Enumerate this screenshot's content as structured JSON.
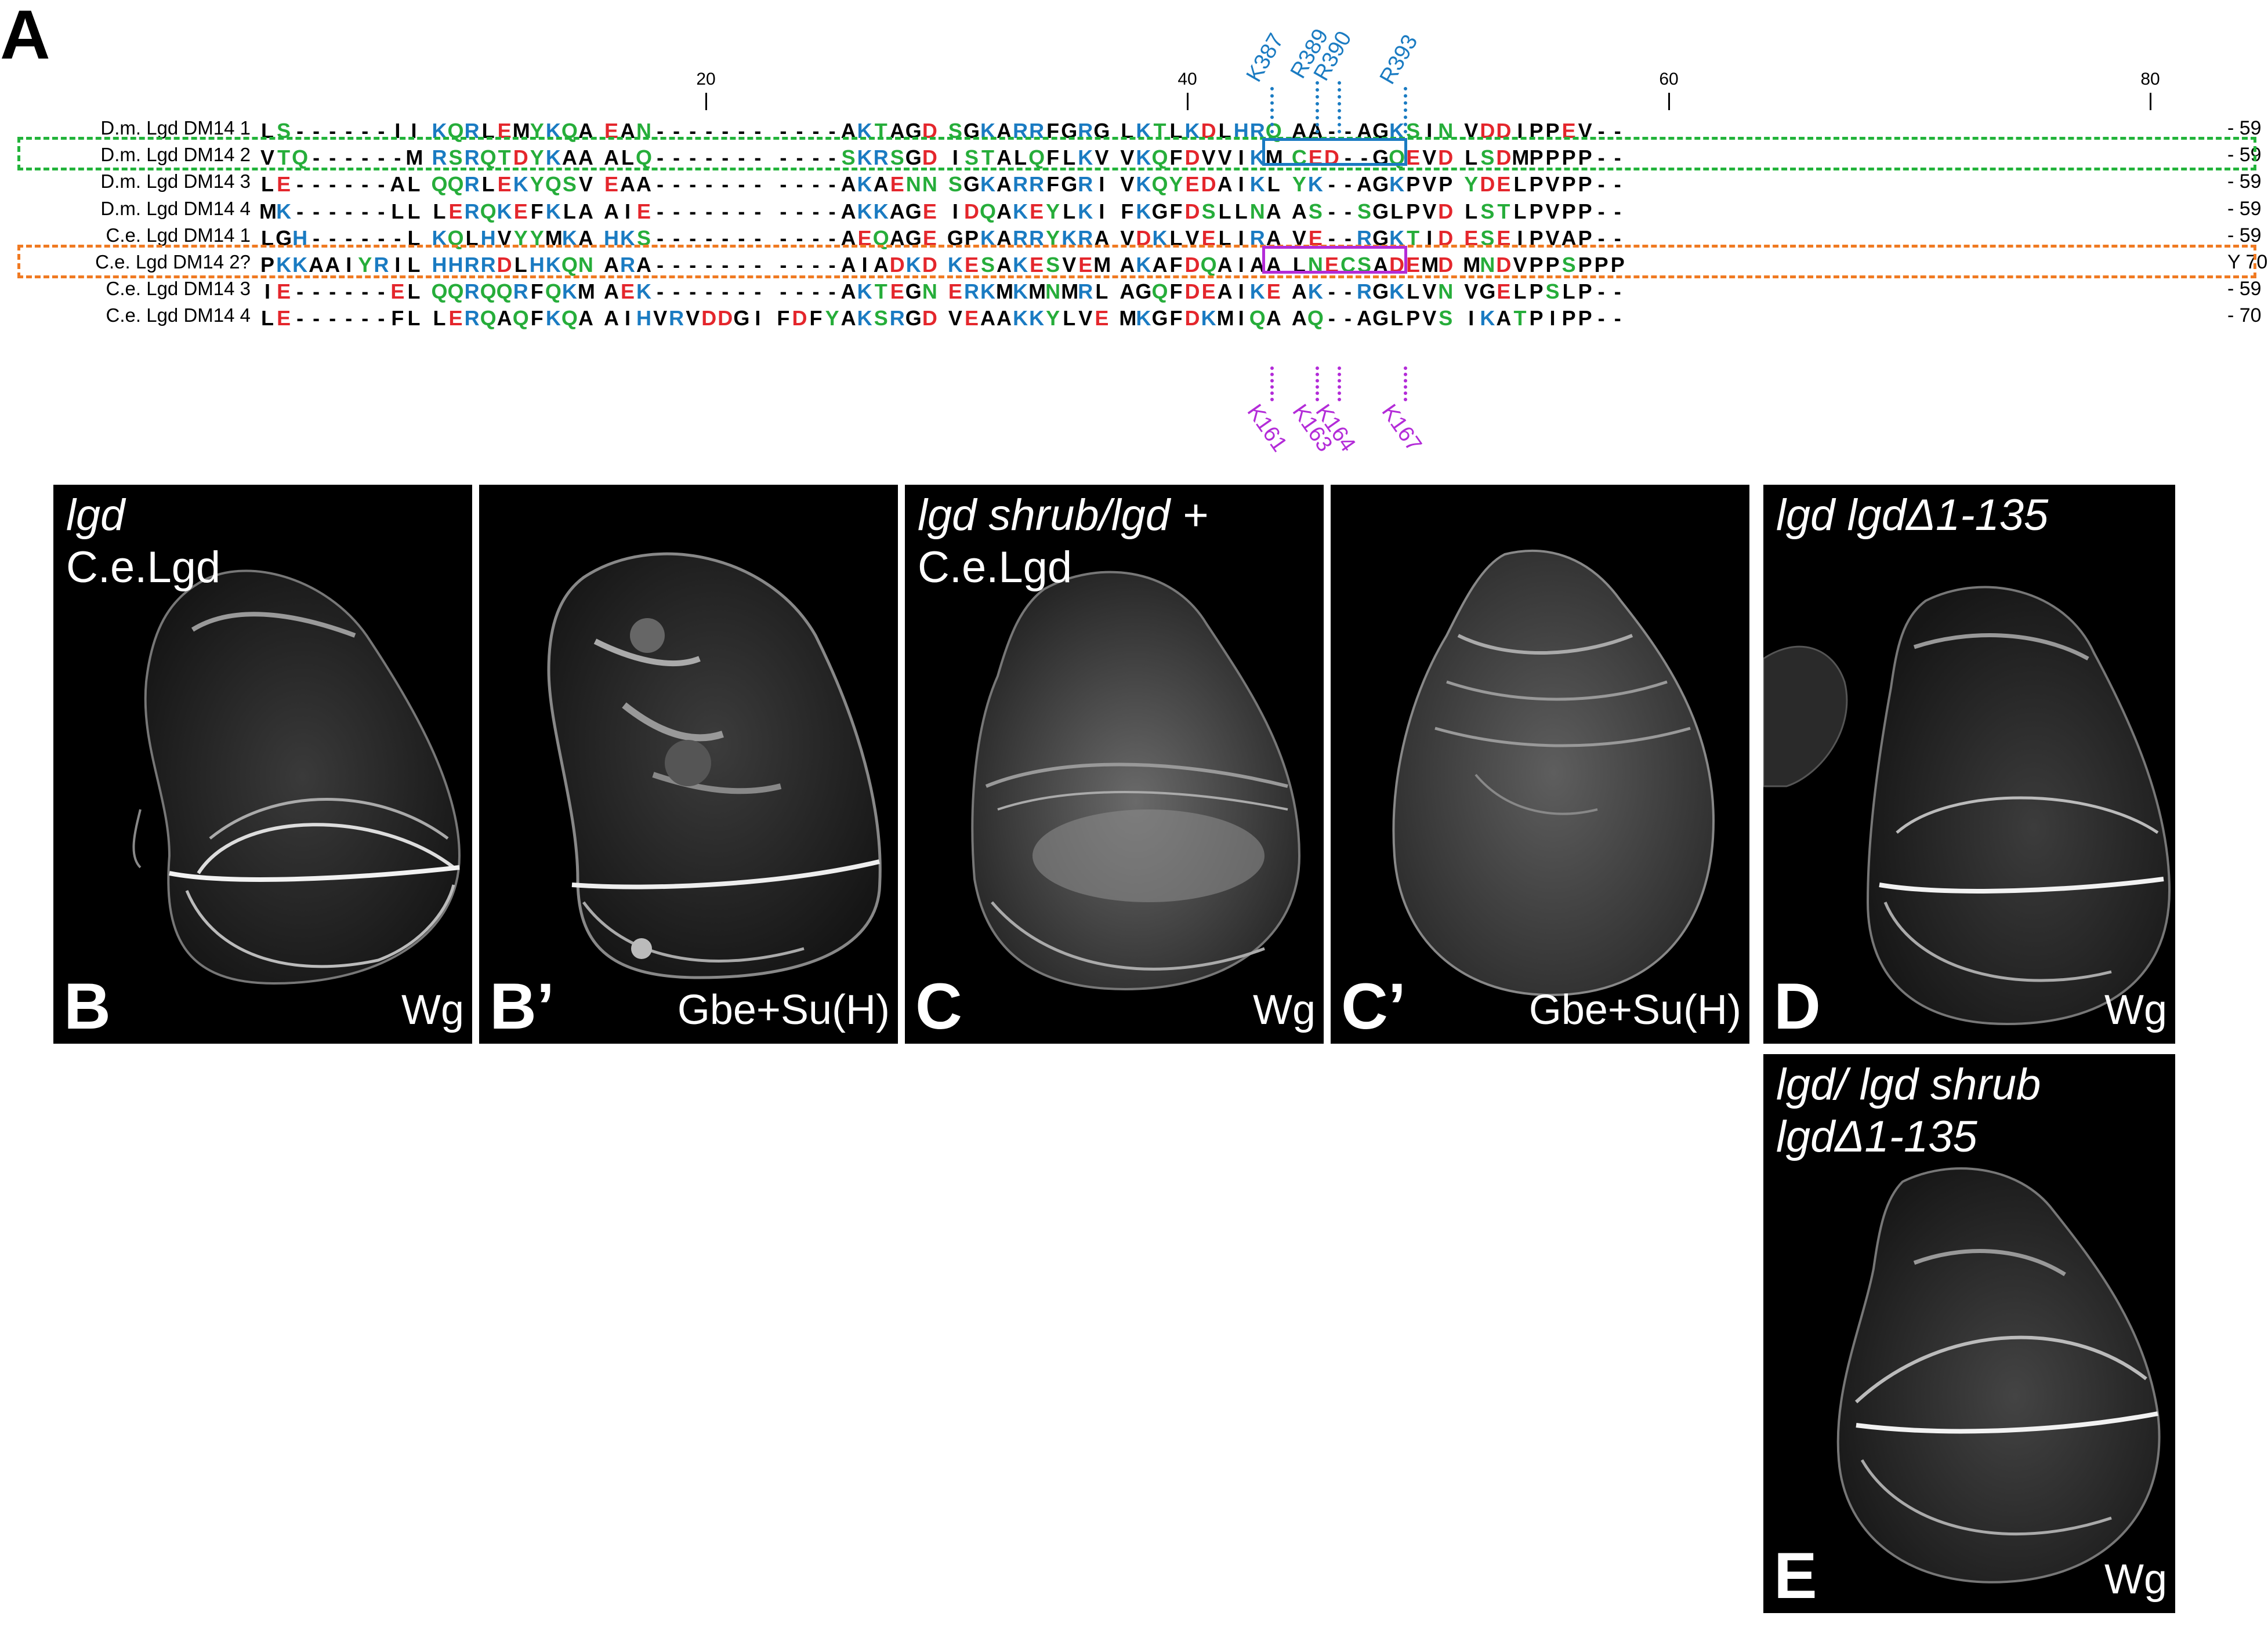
{
  "panel_a": {
    "letter": "A",
    "ruler": [
      "20",
      "40",
      "60",
      "80"
    ],
    "colors": {
      "K": "#1a7bc2",
      "R": "#1a7bc2",
      "H": "#1a7bc2",
      "D": "#e4262c",
      "E": "#e4262c",
      "S": "#26ad3a",
      "T": "#26ad3a",
      "N": "#26ad3a",
      "Q": "#26ad3a",
      "Y": "#26ad3a",
      "C": "#26ad3a",
      "default": "#000000"
    },
    "rows": [
      {
        "name": "D.m. Lgd DM14 1",
        "seq": "LS------II KQRLEMYKQA EAN------- ----AKTAGD SGKARRFGRG LKTLKDLHRQ AA--AGKSIN VDDIPPEV--",
        "end": "- 59"
      },
      {
        "name": "D.m. Lgd DM14 2",
        "seq": "VTQ------M RSRQTDYKAA ALQ------- ----SKRSGD ISTALQFLKV VKQFDVVIKM CED--GQEVD LSDMPPPP--",
        "end": "- 59"
      },
      {
        "name": "D.m. Lgd DM14 3",
        "seq": "LE------AL QQRLEKYQSV EAA------- ----AKAENN SGKARRFGRI VKQYEDAIKL YK--AGKPVP YDELPVPP--",
        "end": "- 59"
      },
      {
        "name": "D.m. Lgd DM14 4",
        "seq": "MK------LL LERQKEFKLA AIE------- ----AKKAGE IDQAKEYLKI FKGFDSLLNA AS--SGLPVD LSTLPVPP--",
        "end": "- 59"
      },
      {
        "name": "C.e. Lgd DM14 1",
        "seq": "LGH------L KQLHVYYMKA HKS------- ----AEQAGE GPKARRYKRA VDKLVELIRA VE--RGKTID ESEIPVAP--",
        "end": "- 59"
      },
      {
        "name": "C.e. Lgd DM14 2?",
        "seq": "PKKAAIYRIL HHRRDLHKQN ARA------- ----AIADKD KESAKESVEM AKAFDQAIAA LNECSADEMD MNDVPPSPPP",
        "end": "Y 70"
      },
      {
        "name": "C.e. Lgd DM14 3",
        "seq": "IE------EL QQRQQRFQKM AEK------- ----AKTEGN ERKMKMNMRL AGQFDEAIKE AK--RGKLVN VGELPSLP--",
        "end": "- 59"
      },
      {
        "name": "C.e. Lgd DM14 4",
        "seq": "LE------FL LERQAQFKQA AIHVRVDDGI FDFYAKSRGD VEAAKKYLVE MKGFDKMIQA AQ--AGLPVS IKATPIPP--",
        "end": "- 70"
      }
    ],
    "top_sites": [
      "K387",
      "R389",
      "R390",
      "R393"
    ],
    "bottom_sites": [
      "K161",
      "K163",
      "K164",
      "K167"
    ],
    "highlight_colors": {
      "dm3": "#22b33a",
      "ce1": "#f07a22",
      "blue": "#1a7bc2",
      "purple": "#b32bd8"
    }
  },
  "panels": [
    {
      "id": "B",
      "letter": "B",
      "genotype": "lgd",
      "construct": "C.e.Lgd",
      "stain": "Wg"
    },
    {
      "id": "B2",
      "letter": "B’",
      "genotype": "",
      "construct": "",
      "stain": "Gbe+Su(H)"
    },
    {
      "id": "C",
      "letter": "C",
      "genotype": "lgd shrub/lgd +",
      "construct": "C.e.Lgd",
      "stain": "Wg"
    },
    {
      "id": "C2",
      "letter": "C’",
      "genotype": "",
      "construct": "",
      "stain": "Gbe+Su(H)"
    },
    {
      "id": "D",
      "letter": "D",
      "genotype": "lgd lgdΔ1-135",
      "construct": "",
      "stain": "Wg"
    },
    {
      "id": "E",
      "letter": "E",
      "genotype": "lgd/ lgd shrub",
      "genotype2": "lgdΔ1-135",
      "stain": "Wg"
    }
  ]
}
